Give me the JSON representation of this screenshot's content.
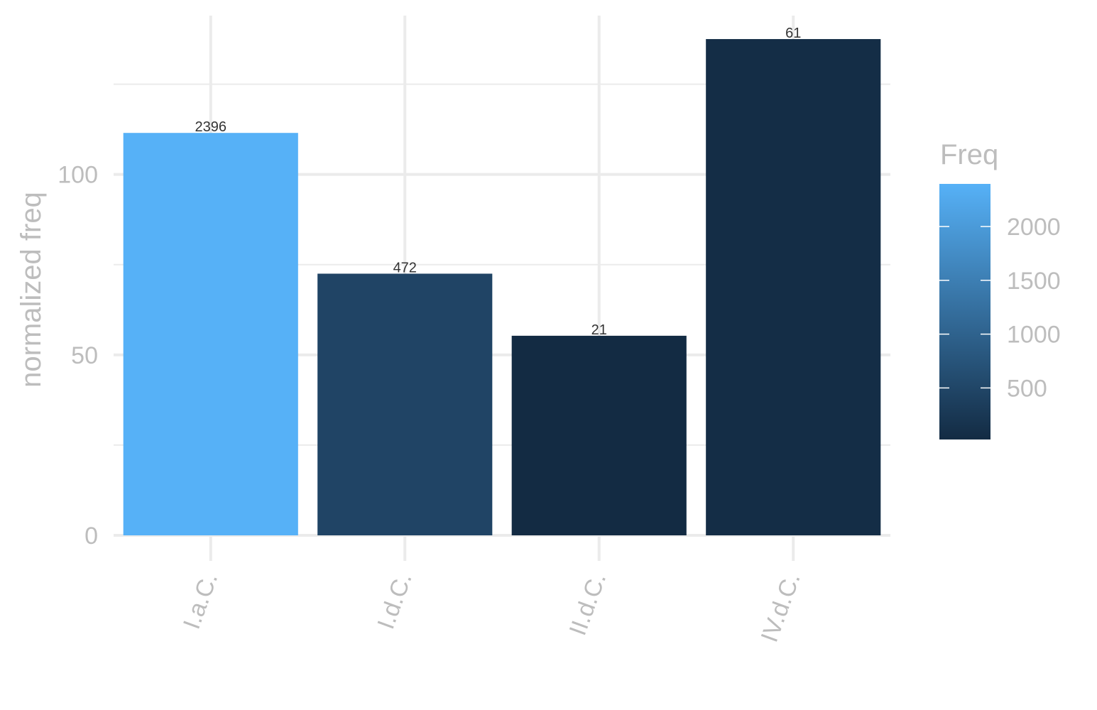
{
  "chart_data": {
    "type": "bar",
    "categories": [
      "I.a.C.",
      "I.d.C.",
      "II.d.C.",
      "IV.d.C."
    ],
    "values": [
      111.5,
      72.5,
      55.3,
      137.5
    ],
    "bar_labels": [
      "2396",
      "472",
      "21",
      "61"
    ],
    "fill_values": [
      2396,
      472,
      21,
      61
    ],
    "xlabel": "",
    "ylabel": "normalized freq",
    "ylim": [
      0,
      144
    ],
    "y_ticks": [
      0,
      50,
      100
    ],
    "y_tick_labels": [
      "0",
      "50",
      "100"
    ],
    "grid": true,
    "legend": {
      "title": "Freq",
      "placement": "right",
      "type": "colorbar",
      "range": [
        21,
        2396
      ],
      "ticks": [
        500,
        1000,
        1500,
        2000
      ],
      "tick_labels": [
        "500",
        "1000",
        "1500",
        "2000"
      ],
      "low_color": "#132B43",
      "high_color": "#56B1F7"
    }
  }
}
